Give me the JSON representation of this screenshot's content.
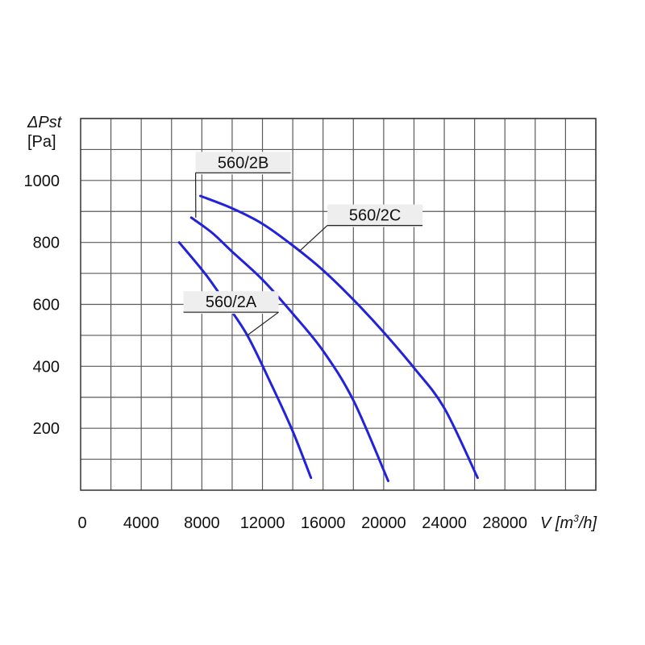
{
  "chart_data": {
    "type": "line",
    "ylabel_line1": "ΔPst",
    "ylabel_line2": "[Pa]",
    "xlabel_prefix": "V",
    "xlabel_unit_open": " [m",
    "xlabel_unit_sup": "3",
    "xlabel_unit_close": "/h]",
    "xlim": [
      0,
      34000
    ],
    "ylim": [
      0,
      1200
    ],
    "x_tick_labels": [
      {
        "value": 0,
        "label": "0"
      },
      {
        "value": 4000,
        "label": "4000"
      },
      {
        "value": 8000,
        "label": "8000"
      },
      {
        "value": 12000,
        "label": "12000"
      },
      {
        "value": 16000,
        "label": "16000"
      },
      {
        "value": 20000,
        "label": "20000"
      },
      {
        "value": 24000,
        "label": "24000"
      },
      {
        "value": 28000,
        "label": "28000"
      }
    ],
    "y_tick_labels": [
      {
        "value": 200,
        "label": "200"
      },
      {
        "value": 400,
        "label": "400"
      },
      {
        "value": 600,
        "label": "600"
      },
      {
        "value": 800,
        "label": "800"
      },
      {
        "value": 1000,
        "label": "1000"
      }
    ],
    "grid_x": [
      2000,
      4000,
      6000,
      8000,
      10000,
      12000,
      14000,
      16000,
      18000,
      20000,
      22000,
      24000,
      26000,
      28000,
      30000,
      32000,
      34000
    ],
    "grid_y": [
      100,
      200,
      300,
      400,
      500,
      600,
      700,
      800,
      900,
      1000,
      1100,
      1200
    ],
    "line_color": "#2222dd",
    "series": [
      {
        "name": "560/2A",
        "points": [
          [
            6500,
            800
          ],
          [
            8200,
            700
          ],
          [
            9500,
            610
          ],
          [
            11000,
            500
          ],
          [
            12600,
            340
          ],
          [
            14000,
            190
          ],
          [
            15200,
            40
          ]
        ],
        "label_anchor": [
          7000,
          580
        ],
        "leader_to": [
          11000,
          500
        ]
      },
      {
        "name": "560/2B",
        "points": [
          [
            7300,
            880
          ],
          [
            8700,
            830
          ],
          [
            10000,
            770
          ],
          [
            12000,
            680
          ],
          [
            14000,
            570
          ],
          [
            16000,
            450
          ],
          [
            18000,
            290
          ],
          [
            20300,
            30
          ]
        ],
        "label_anchor": [
          7800,
          1030
        ],
        "leader_to": [
          7600,
          880
        ]
      },
      {
        "name": "560/2C",
        "points": [
          [
            7900,
            950
          ],
          [
            10000,
            910
          ],
          [
            12000,
            860
          ],
          [
            14000,
            790
          ],
          [
            16000,
            710
          ],
          [
            18000,
            615
          ],
          [
            20000,
            510
          ],
          [
            22000,
            395
          ],
          [
            24000,
            265
          ],
          [
            26200,
            40
          ]
        ],
        "label_anchor": [
          16500,
          860
        ],
        "leader_to": [
          14400,
          770
        ]
      }
    ]
  }
}
